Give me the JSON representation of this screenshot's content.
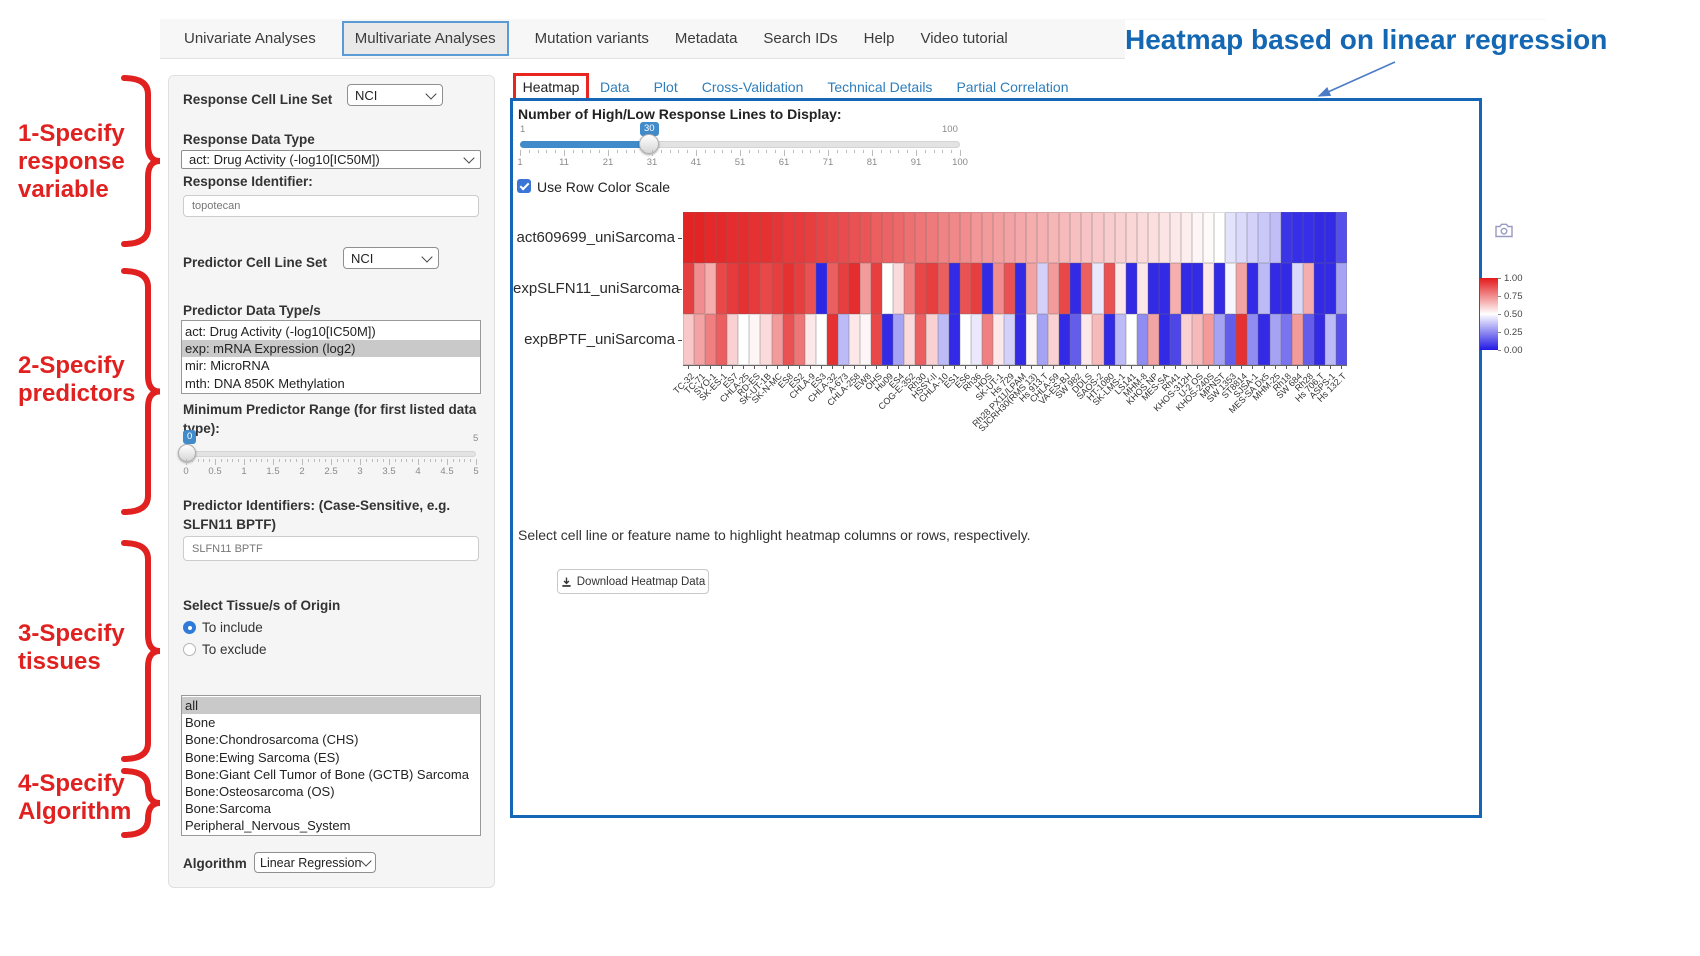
{
  "annotations": {
    "heading": "Heatmap based on linear regression",
    "steps": [
      {
        "lines": [
          "1-Specify",
          "response",
          "variable"
        ]
      },
      {
        "lines": [
          "2-Specify",
          "predictors"
        ]
      },
      {
        "lines": [
          "3-Specify",
          "tissues"
        ]
      },
      {
        "lines": [
          "4-Specify",
          "Algorithm"
        ]
      }
    ],
    "accent_red": "#e0211f",
    "accent_blue": "#1467b3"
  },
  "nav": {
    "items": [
      "Univariate Analyses",
      "Multivariate Analyses",
      "Mutation variants",
      "Metadata",
      "Search IDs",
      "Help",
      "Video tutorial"
    ],
    "active": "Multivariate Analyses"
  },
  "form": {
    "response_cell_line_set_label": "Response Cell Line Set",
    "response_cell_line_set_value": "NCI",
    "response_data_type_label": "Response Data Type",
    "response_data_type_value": "act: Drug Activity (-log10[IC50M])",
    "response_identifier_label": "Response Identifier:",
    "response_identifier_value": "topotecan",
    "predictor_cell_line_set_label": "Predictor Cell Line Set",
    "predictor_cell_line_set_value": "NCI",
    "predictor_data_types_label": "Predictor Data Type/s",
    "predictor_data_types_options": [
      "act: Drug Activity (-log10[IC50M])",
      "exp: mRNA Expression (log2)",
      "mir: MicroRNA",
      "mth: DNA 850K Methylation"
    ],
    "predictor_data_types_selected": "exp: mRNA Expression (log2)",
    "min_predictor_range_label": "Minimum Predictor Range (for first listed data type):",
    "min_predictor_range_value": "0",
    "min_predictor_range_max": "5",
    "min_predictor_range_ticks": [
      "0",
      "0.5",
      "1",
      "1.5",
      "2",
      "2.5",
      "3",
      "3.5",
      "4",
      "4.5",
      "5"
    ],
    "predictor_identifiers_label": "Predictor Identifiers: (Case-Sensitive, e.g. SLFN11 BPTF)",
    "predictor_identifiers_value": "SLFN11 BPTF",
    "tissue_label": "Select Tissue/s of Origin",
    "tissue_radio_include": "To include",
    "tissue_radio_exclude": "To exclude",
    "tissue_selected_radio": "To include",
    "tissue_options": [
      "all",
      "Bone",
      "Bone:Chondrosarcoma (CHS)",
      "Bone:Ewing Sarcoma (ES)",
      "Bone:Giant Cell Tumor of Bone (GCTB) Sarcoma",
      "Bone:Osteosarcoma (OS)",
      "Bone:Sarcoma",
      "Peripheral_Nervous_System"
    ],
    "tissue_selected": "all",
    "algorithm_label": "Algorithm",
    "algorithm_value": "Linear Regression"
  },
  "main": {
    "tabs": [
      "Heatmap",
      "Data",
      "Plot",
      "Cross-Validation",
      "Technical Details",
      "Partial Correlation"
    ],
    "active_tab": "Heatmap",
    "slider_label": "Number of High/Low Response Lines to Display:",
    "slider_min": "1",
    "slider_max": "100",
    "slider_value": "30",
    "slider_ticks": [
      "1",
      "11",
      "21",
      "31",
      "41",
      "51",
      "61",
      "71",
      "81",
      "91",
      "100"
    ],
    "row_scale_checkbox_label": "Use Row Color Scale",
    "hint": "Select cell line or feature name to highlight heatmap columns or rows, respectively.",
    "download_button_label": "Download Heatmap Data"
  },
  "chart_data": {
    "type": "heatmap",
    "rows": [
      "act609699_uniSarcoma",
      "expSLFN11_uniSarcoma",
      "expBPTF_uniSarcoma"
    ],
    "columns": [
      "TC-32",
      "TC-71",
      "SYO-1",
      "SK-ES-1",
      "ES7",
      "CHLA-25",
      "RD-ES",
      "SK-UT-1B",
      "SK-N-MC",
      "ES8",
      "ES2",
      "CHLA-9",
      "ES3",
      "CHLA-32",
      "A-673",
      "CHLA-258",
      "EW8",
      "OHS",
      "Hu09",
      "ES4",
      "COG-E-352",
      "Rh30",
      "HSSY-II",
      "CHLA-10",
      "ES1",
      "ES6",
      "Rh36",
      "HOS",
      "SK-UT-1",
      "Hs 729",
      "Rh28 PX11/LPAM",
      "SJCRH30(RMS 13)",
      "Hs 913.T",
      "CHLA-59",
      "VA-ES-BJ",
      "SW 982",
      "DDLS",
      "SAOS-2",
      "HT-1080",
      "SK-LMS-1",
      "LS141",
      "MHM-8",
      "KHOS NP",
      "MES-SA",
      "Rh41",
      "KHOS-312H",
      "U-2 OS",
      "KHOS-240S",
      "MPNST",
      "SW 1353",
      "ST8814",
      "SJSA-1",
      "MES-SA Dx5",
      "MHM-25",
      "Rh18",
      "SW 684",
      "Rh28",
      "Hs 706.T",
      "ASPS-1",
      "Hs 132.T"
    ],
    "values": [
      [
        0.98,
        0.98,
        0.97,
        0.97,
        0.96,
        0.96,
        0.95,
        0.95,
        0.94,
        0.93,
        0.93,
        0.92,
        0.91,
        0.9,
        0.89,
        0.88,
        0.87,
        0.85,
        0.84,
        0.83,
        0.81,
        0.8,
        0.79,
        0.77,
        0.76,
        0.75,
        0.73,
        0.72,
        0.71,
        0.7,
        0.69,
        0.68,
        0.67,
        0.66,
        0.65,
        0.64,
        0.63,
        0.62,
        0.61,
        0.6,
        0.59,
        0.58,
        0.57,
        0.56,
        0.55,
        0.54,
        0.52,
        0.51,
        0.5,
        0.44,
        0.42,
        0.4,
        0.38,
        0.36,
        0.06,
        0.05,
        0.05,
        0.04,
        0.04,
        0.12
      ],
      [
        0.92,
        0.75,
        0.68,
        0.9,
        0.93,
        0.95,
        0.93,
        0.9,
        0.92,
        0.95,
        0.92,
        0.88,
        0.03,
        0.85,
        0.92,
        0.96,
        0.72,
        0.92,
        0.5,
        0.58,
        0.78,
        0.9,
        0.92,
        0.85,
        0.04,
        0.88,
        0.92,
        0.04,
        0.75,
        0.88,
        0.04,
        0.7,
        0.4,
        0.72,
        0.9,
        0.04,
        0.85,
        0.45,
        0.88,
        0.55,
        0.04,
        0.55,
        0.04,
        0.04,
        0.68,
        0.04,
        0.04,
        0.55,
        0.04,
        0.48,
        0.7,
        0.04,
        0.35,
        0.04,
        0.04,
        0.42,
        0.68,
        0.04,
        0.04,
        0.3
      ],
      [
        0.62,
        0.7,
        0.78,
        0.85,
        0.6,
        0.5,
        0.52,
        0.58,
        0.72,
        0.88,
        0.8,
        0.55,
        0.5,
        0.95,
        0.35,
        0.55,
        0.52,
        0.9,
        0.04,
        0.3,
        0.58,
        0.85,
        0.6,
        0.35,
        0.04,
        0.5,
        0.45,
        0.78,
        0.55,
        0.4,
        0.04,
        0.52,
        0.3,
        0.6,
        0.04,
        0.15,
        0.55,
        0.65,
        0.04,
        0.35,
        0.5,
        0.25,
        0.7,
        0.04,
        0.1,
        0.6,
        0.65,
        0.72,
        0.3,
        0.15,
        0.95,
        0.25,
        0.04,
        0.3,
        0.2,
        0.72,
        0.15,
        0.04,
        0.35,
        0.12
      ]
    ],
    "colorscale": {
      "max_color": "#e31a1c",
      "mid_color": "#ffffff",
      "min_color": "#2118e4",
      "legend_labels": [
        "1.00",
        "0.75",
        "0.50",
        "0.25",
        "0.00"
      ],
      "domain": [
        0,
        1
      ]
    }
  }
}
